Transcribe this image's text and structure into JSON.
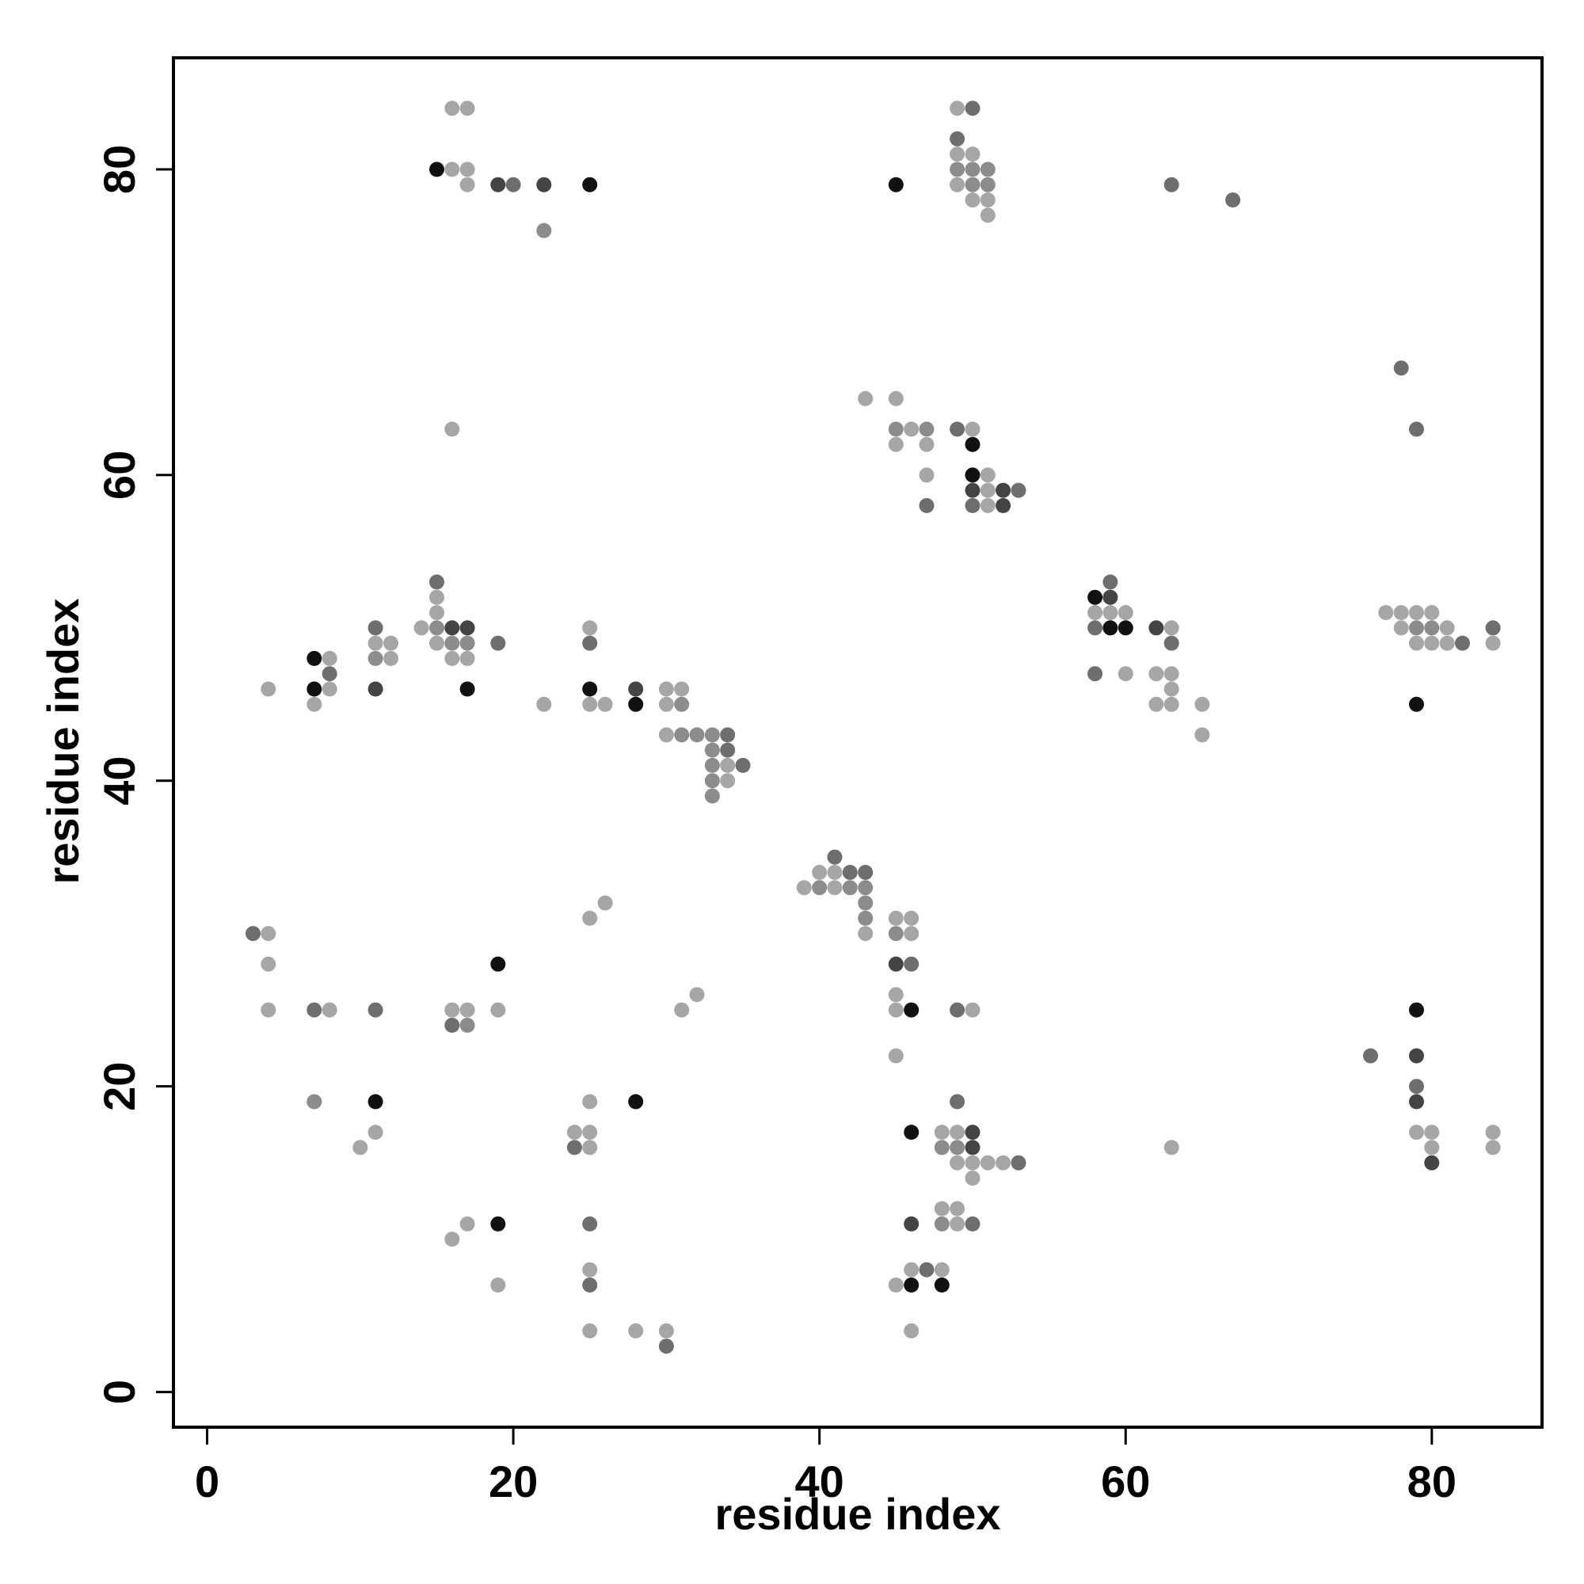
{
  "chart_data": {
    "type": "scatter",
    "title": "",
    "xlabel": "residue index",
    "ylabel": "residue index",
    "xlim": [
      -2.2,
      87.2
    ],
    "ylim": [
      -2.3,
      87.3
    ],
    "x_ticks": [
      0,
      20,
      40,
      60,
      80
    ],
    "y_ticks": [
      0,
      20,
      40,
      60,
      80
    ],
    "grid": false,
    "legend": "none",
    "marker": "filled circle",
    "color_scale": [
      "#a6a6a6",
      "#8c8c8c",
      "#6e6e6e",
      "#444444",
      "#111111"
    ],
    "points": [
      [
        16,
        84,
        0
      ],
      [
        17,
        84,
        0
      ],
      [
        49,
        84,
        0
      ],
      [
        50,
        84,
        2
      ],
      [
        49,
        82,
        2
      ],
      [
        49,
        81,
        0
      ],
      [
        50,
        81,
        0
      ],
      [
        15,
        80,
        4
      ],
      [
        16,
        80,
        0
      ],
      [
        17,
        80,
        0
      ],
      [
        49,
        80,
        1
      ],
      [
        50,
        80,
        1
      ],
      [
        51,
        80,
        1
      ],
      [
        17,
        79,
        0
      ],
      [
        19,
        79,
        3
      ],
      [
        20,
        79,
        2
      ],
      [
        22,
        79,
        3
      ],
      [
        25,
        79,
        4
      ],
      [
        45,
        79,
        4
      ],
      [
        49,
        79,
        0
      ],
      [
        50,
        79,
        1
      ],
      [
        51,
        79,
        1
      ],
      [
        63,
        79,
        2
      ],
      [
        50,
        78,
        0
      ],
      [
        51,
        78,
        0
      ],
      [
        67,
        78,
        2
      ],
      [
        51,
        77,
        0
      ],
      [
        22,
        76,
        1
      ],
      [
        78,
        67,
        2
      ],
      [
        43,
        65,
        0
      ],
      [
        45,
        65,
        0
      ],
      [
        16,
        63,
        0
      ],
      [
        45,
        63,
        1
      ],
      [
        46,
        63,
        0
      ],
      [
        47,
        63,
        1
      ],
      [
        49,
        63,
        2
      ],
      [
        50,
        63,
        0
      ],
      [
        79,
        63,
        2
      ],
      [
        45,
        62,
        0
      ],
      [
        47,
        62,
        0
      ],
      [
        50,
        62,
        4
      ],
      [
        47,
        60,
        0
      ],
      [
        50,
        60,
        4
      ],
      [
        51,
        60,
        0
      ],
      [
        50,
        59,
        3
      ],
      [
        51,
        59,
        0
      ],
      [
        52,
        59,
        3
      ],
      [
        53,
        59,
        2
      ],
      [
        47,
        58,
        2
      ],
      [
        50,
        58,
        2
      ],
      [
        51,
        58,
        0
      ],
      [
        52,
        58,
        3
      ],
      [
        15,
        53,
        2
      ],
      [
        59,
        53,
        2
      ],
      [
        15,
        52,
        0
      ],
      [
        58,
        52,
        4
      ],
      [
        59,
        52,
        3
      ],
      [
        15,
        51,
        0
      ],
      [
        58,
        51,
        0
      ],
      [
        59,
        51,
        0
      ],
      [
        60,
        51,
        0
      ],
      [
        77,
        51,
        0
      ],
      [
        78,
        51,
        0
      ],
      [
        79,
        51,
        0
      ],
      [
        80,
        51,
        0
      ],
      [
        11,
        50,
        2
      ],
      [
        14,
        50,
        0
      ],
      [
        15,
        50,
        1
      ],
      [
        16,
        50,
        3
      ],
      [
        17,
        50,
        3
      ],
      [
        25,
        50,
        0
      ],
      [
        58,
        50,
        2
      ],
      [
        59,
        50,
        4
      ],
      [
        60,
        50,
        4
      ],
      [
        62,
        50,
        3
      ],
      [
        63,
        50,
        0
      ],
      [
        78,
        50,
        0
      ],
      [
        79,
        50,
        1
      ],
      [
        80,
        50,
        1
      ],
      [
        81,
        50,
        0
      ],
      [
        84,
        50,
        2
      ],
      [
        11,
        49,
        0
      ],
      [
        12,
        49,
        0
      ],
      [
        15,
        49,
        0
      ],
      [
        16,
        49,
        1
      ],
      [
        17,
        49,
        1
      ],
      [
        19,
        49,
        2
      ],
      [
        25,
        49,
        2
      ],
      [
        63,
        49,
        2
      ],
      [
        79,
        49,
        0
      ],
      [
        80,
        49,
        0
      ],
      [
        81,
        49,
        0
      ],
      [
        82,
        49,
        2
      ],
      [
        84,
        49,
        0
      ],
      [
        7,
        48,
        4
      ],
      [
        8,
        48,
        0
      ],
      [
        11,
        48,
        1
      ],
      [
        12,
        48,
        0
      ],
      [
        16,
        48,
        0
      ],
      [
        17,
        48,
        0
      ],
      [
        8,
        47,
        2
      ],
      [
        58,
        47,
        2
      ],
      [
        60,
        47,
        0
      ],
      [
        62,
        47,
        0
      ],
      [
        63,
        47,
        0
      ],
      [
        4,
        46,
        0
      ],
      [
        7,
        46,
        4
      ],
      [
        8,
        46,
        0
      ],
      [
        11,
        46,
        3
      ],
      [
        17,
        46,
        4
      ],
      [
        25,
        46,
        4
      ],
      [
        28,
        46,
        3
      ],
      [
        30,
        46,
        0
      ],
      [
        31,
        46,
        0
      ],
      [
        63,
        46,
        0
      ],
      [
        7,
        45,
        0
      ],
      [
        22,
        45,
        0
      ],
      [
        25,
        45,
        0
      ],
      [
        26,
        45,
        0
      ],
      [
        28,
        45,
        4
      ],
      [
        30,
        45,
        0
      ],
      [
        31,
        45,
        1
      ],
      [
        62,
        45,
        0
      ],
      [
        63,
        45,
        0
      ],
      [
        65,
        45,
        0
      ],
      [
        79,
        45,
        4
      ],
      [
        30,
        43,
        0
      ],
      [
        31,
        43,
        1
      ],
      [
        32,
        43,
        1
      ],
      [
        33,
        43,
        1
      ],
      [
        34,
        43,
        2
      ],
      [
        65,
        43,
        0
      ],
      [
        33,
        42,
        1
      ],
      [
        34,
        42,
        2
      ],
      [
        33,
        41,
        1
      ],
      [
        34,
        41,
        0
      ],
      [
        35,
        41,
        2
      ],
      [
        33,
        40,
        1
      ],
      [
        34,
        40,
        0
      ],
      [
        33,
        39,
        1
      ],
      [
        41,
        35,
        2
      ],
      [
        40,
        34,
        0
      ],
      [
        41,
        34,
        0
      ],
      [
        42,
        34,
        2
      ],
      [
        43,
        34,
        2
      ],
      [
        39,
        33,
        0
      ],
      [
        40,
        33,
        1
      ],
      [
        41,
        33,
        0
      ],
      [
        42,
        33,
        1
      ],
      [
        43,
        33,
        1
      ],
      [
        26,
        32,
        0
      ],
      [
        43,
        32,
        1
      ],
      [
        25,
        31,
        0
      ],
      [
        43,
        31,
        1
      ],
      [
        45,
        31,
        0
      ],
      [
        46,
        31,
        0
      ],
      [
        3,
        30,
        2
      ],
      [
        4,
        30,
        0
      ],
      [
        43,
        30,
        0
      ],
      [
        45,
        30,
        1
      ],
      [
        46,
        30,
        0
      ],
      [
        4,
        28,
        0
      ],
      [
        19,
        28,
        4
      ],
      [
        45,
        28,
        3
      ],
      [
        46,
        28,
        2
      ],
      [
        32,
        26,
        0
      ],
      [
        45,
        26,
        0
      ],
      [
        4,
        25,
        0
      ],
      [
        7,
        25,
        2
      ],
      [
        8,
        25,
        0
      ],
      [
        11,
        25,
        2
      ],
      [
        16,
        25,
        0
      ],
      [
        17,
        25,
        0
      ],
      [
        19,
        25,
        0
      ],
      [
        31,
        25,
        0
      ],
      [
        45,
        25,
        0
      ],
      [
        46,
        25,
        4
      ],
      [
        49,
        25,
        2
      ],
      [
        50,
        25,
        0
      ],
      [
        79,
        25,
        4
      ],
      [
        16,
        24,
        2
      ],
      [
        17,
        24,
        1
      ],
      [
        45,
        22,
        0
      ],
      [
        76,
        22,
        2
      ],
      [
        79,
        22,
        3
      ],
      [
        79,
        20,
        2
      ],
      [
        7,
        19,
        1
      ],
      [
        11,
        19,
        4
      ],
      [
        25,
        19,
        0
      ],
      [
        28,
        19,
        4
      ],
      [
        49,
        19,
        2
      ],
      [
        79,
        19,
        3
      ],
      [
        11,
        17,
        0
      ],
      [
        24,
        17,
        0
      ],
      [
        25,
        17,
        0
      ],
      [
        46,
        17,
        4
      ],
      [
        48,
        17,
        0
      ],
      [
        49,
        17,
        0
      ],
      [
        50,
        17,
        3
      ],
      [
        79,
        17,
        0
      ],
      [
        80,
        17,
        0
      ],
      [
        84,
        17,
        0
      ],
      [
        10,
        16,
        0
      ],
      [
        24,
        16,
        2
      ],
      [
        25,
        16,
        0
      ],
      [
        48,
        16,
        1
      ],
      [
        49,
        16,
        1
      ],
      [
        50,
        16,
        3
      ],
      [
        63,
        16,
        0
      ],
      [
        80,
        16,
        0
      ],
      [
        84,
        16,
        0
      ],
      [
        49,
        15,
        0
      ],
      [
        50,
        15,
        0
      ],
      [
        51,
        15,
        0
      ],
      [
        52,
        15,
        0
      ],
      [
        53,
        15,
        2
      ],
      [
        80,
        15,
        3
      ],
      [
        50,
        14,
        0
      ],
      [
        48,
        12,
        0
      ],
      [
        49,
        12,
        0
      ],
      [
        17,
        11,
        0
      ],
      [
        19,
        11,
        4
      ],
      [
        25,
        11,
        2
      ],
      [
        46,
        11,
        3
      ],
      [
        48,
        11,
        1
      ],
      [
        49,
        11,
        0
      ],
      [
        50,
        11,
        2
      ],
      [
        16,
        10,
        0
      ],
      [
        25,
        8,
        0
      ],
      [
        46,
        8,
        0
      ],
      [
        47,
        8,
        2
      ],
      [
        48,
        8,
        0
      ],
      [
        19,
        7,
        0
      ],
      [
        25,
        7,
        2
      ],
      [
        45,
        7,
        0
      ],
      [
        46,
        7,
        4
      ],
      [
        48,
        7,
        4
      ],
      [
        25,
        4,
        0
      ],
      [
        28,
        4,
        0
      ],
      [
        30,
        4,
        0
      ],
      [
        46,
        4,
        0
      ],
      [
        30,
        3,
        2
      ]
    ]
  }
}
